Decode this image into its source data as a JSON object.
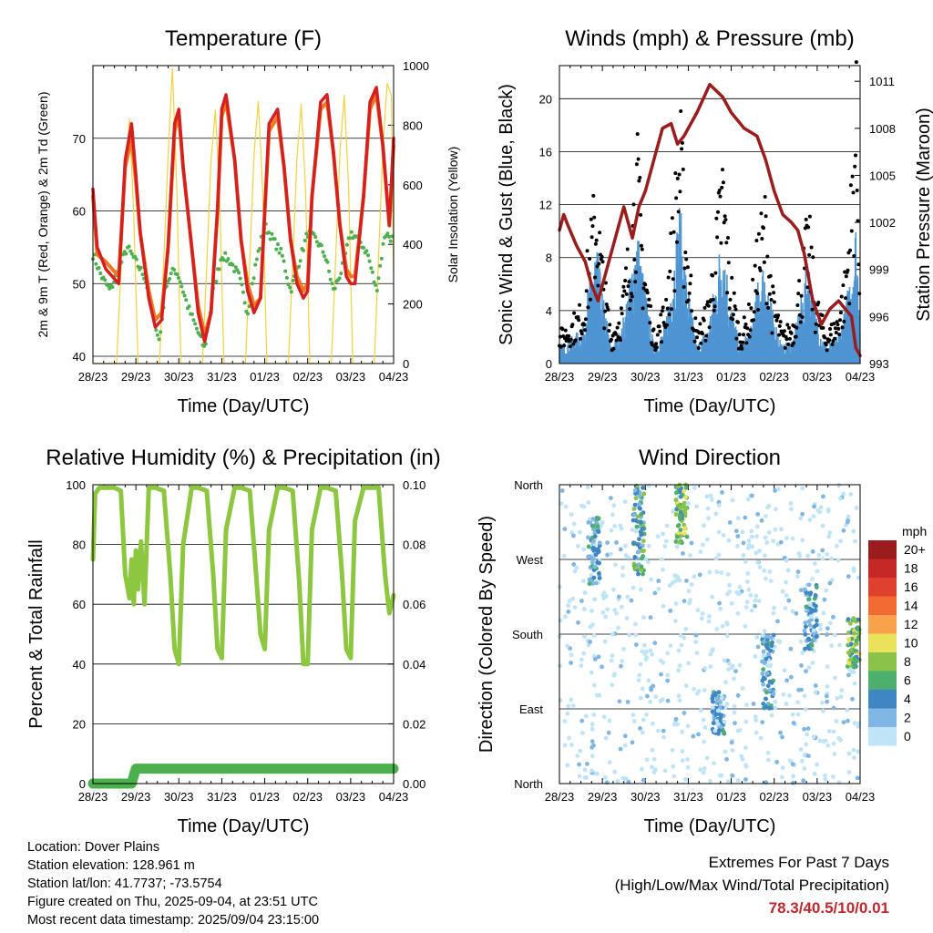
{
  "chart_data": [
    {
      "id": "temperature",
      "type": "line",
      "title": "Temperature (F)",
      "xlabel": "Time (Day/UTC)",
      "ylabel": "2m & 9m T (Red, Orange) & 2m Td (Green)",
      "y2label": "Solar Insolation (Yellow)",
      "x_ticks": [
        "28/23",
        "29/23",
        "30/23",
        "31/23",
        "01/23",
        "02/23",
        "03/23",
        "04/23"
      ],
      "ylim": [
        39,
        80
      ],
      "y_ticks": [
        40,
        50,
        60,
        70
      ],
      "y2lim": [
        0,
        1000
      ],
      "y2_ticks": [
        0,
        200,
        400,
        600,
        800,
        1000
      ],
      "colors": {
        "t2m": "#d42020",
        "t9m": "#f07820",
        "td2m": "#4cb04c",
        "solar": "#f3d23c"
      },
      "series": [
        {
          "name": "2m T",
          "color": "#d42020",
          "x": [
            0,
            0.1,
            0.3,
            0.45,
            0.6,
            0.75,
            0.9,
            1.0,
            1.1,
            1.3,
            1.45,
            1.6,
            1.75,
            1.9,
            2.0,
            2.1,
            2.3,
            2.45,
            2.6,
            2.75,
            2.9,
            3.0,
            3.1,
            3.3,
            3.45,
            3.6,
            3.75,
            3.9,
            4.0,
            4.1,
            4.3,
            4.45,
            4.6,
            4.75,
            4.9,
            5.0,
            5.1,
            5.3,
            5.45,
            5.6,
            5.75,
            5.9,
            6.0,
            6.1,
            6.3,
            6.45,
            6.6,
            6.75,
            6.9,
            7.0
          ],
          "values": [
            63,
            55,
            52,
            51,
            50,
            67,
            72,
            65,
            57,
            48,
            44,
            45,
            55,
            72,
            74,
            66,
            55,
            46,
            42,
            46,
            60,
            74,
            76,
            67,
            56,
            49,
            46,
            48,
            60,
            72,
            74,
            66,
            56,
            50,
            48,
            49,
            62,
            75,
            76,
            68,
            58,
            51,
            50,
            50,
            62,
            75,
            77,
            69,
            58,
            70
          ]
        },
        {
          "name": "9m T",
          "color": "#f07820",
          "x": [
            0,
            0.1,
            0.3,
            0.45,
            0.6,
            0.75,
            0.9,
            1.0,
            1.1,
            1.3,
            1.45,
            1.6,
            1.75,
            1.9,
            2.0,
            2.1,
            2.3,
            2.45,
            2.6,
            2.75,
            2.9,
            3.0,
            3.1,
            3.3,
            3.45,
            3.6,
            3.75,
            3.9,
            4.0,
            4.1,
            4.3,
            4.45,
            4.6,
            4.75,
            4.9,
            5.0,
            5.1,
            5.3,
            5.45,
            5.6,
            5.75,
            5.9,
            6.0,
            6.1,
            6.3,
            6.45,
            6.6,
            6.75,
            6.9,
            7.0
          ],
          "values": [
            62,
            54,
            53,
            52,
            51,
            66,
            70,
            64,
            57,
            49,
            45,
            46,
            55,
            71,
            73,
            66,
            55,
            47,
            43,
            46,
            60,
            73,
            75,
            67,
            56,
            50,
            47,
            48,
            60,
            71,
            73,
            66,
            56,
            51,
            49,
            50,
            62,
            74,
            75,
            68,
            58,
            52,
            51,
            51,
            62,
            74,
            76,
            69,
            58,
            69
          ]
        },
        {
          "name": "2m Td",
          "color": "#4cb04c",
          "x": [
            0,
            0.2,
            0.4,
            0.6,
            0.8,
            1.0,
            1.2,
            1.4,
            1.55,
            1.7,
            1.9,
            2.0,
            2.2,
            2.4,
            2.6,
            2.8,
            3.0,
            3.2,
            3.4,
            3.6,
            3.8,
            4.0,
            4.2,
            4.4,
            4.6,
            4.8,
            5.0,
            5.2,
            5.4,
            5.6,
            5.8,
            6.0,
            6.2,
            6.4,
            6.6,
            6.8,
            7.0
          ],
          "values": [
            54,
            51,
            49,
            52,
            55,
            53,
            51,
            46,
            42,
            50,
            52,
            51,
            47,
            44,
            41,
            49,
            54,
            53,
            51,
            46,
            53,
            58,
            56,
            54,
            49,
            53,
            57,
            56,
            54,
            49,
            52,
            57,
            56,
            54,
            49,
            57,
            56
          ]
        },
        {
          "name": "Solar Insolation",
          "color": "#f3d23c",
          "axis": "y2",
          "x": [
            0,
            0.55,
            0.65,
            0.75,
            0.85,
            0.95,
            1.05,
            1.55,
            1.65,
            1.75,
            1.85,
            1.95,
            2.05,
            2.55,
            2.65,
            2.75,
            2.85,
            2.95,
            3.05,
            3.55,
            3.65,
            3.75,
            3.85,
            3.95,
            4.05,
            4.55,
            4.65,
            4.75,
            4.85,
            4.95,
            5.05,
            5.55,
            5.65,
            5.75,
            5.85,
            5.95,
            6.05,
            6.55,
            6.65,
            6.75,
            6.85,
            6.95,
            7.0
          ],
          "values": [
            0,
            0,
            300,
            650,
            820,
            500,
            0,
            0,
            350,
            700,
            990,
            600,
            0,
            0,
            330,
            680,
            850,
            560,
            0,
            0,
            340,
            700,
            880,
            590,
            0,
            0,
            330,
            690,
            870,
            580,
            0,
            0,
            350,
            710,
            900,
            600,
            0,
            0,
            360,
            720,
            940,
            900,
            300
          ]
        }
      ]
    },
    {
      "id": "winds",
      "type": "scatter",
      "title": "Winds (mph) & Pressure (mb)",
      "xlabel": "Time (Day/UTC)",
      "ylabel": "Sonic Wind & Gust (Blue, Black)",
      "y2label": "Station Pressure (Maroon)",
      "x_ticks": [
        "28/23",
        "29/23",
        "30/23",
        "31/23",
        "01/23",
        "02/23",
        "03/23",
        "04/23"
      ],
      "ylim": [
        0,
        22.5
      ],
      "y_ticks": [
        0,
        4,
        8,
        12,
        16,
        20
      ],
      "y2lim": [
        993,
        1012
      ],
      "y2_ticks": [
        993,
        996,
        999,
        1002,
        1005,
        1008,
        1011
      ],
      "colors": {
        "wind": "#4f95d2",
        "gust": "#000000",
        "pressure": "#9b1c1c"
      },
      "series": [
        {
          "name": "Station Pressure",
          "color": "#9b1c1c",
          "axis": "y2",
          "x": [
            0,
            0.1,
            0.2,
            0.4,
            0.6,
            0.75,
            0.9,
            1.1,
            1.3,
            1.5,
            1.7,
            1.85,
            2.0,
            2.2,
            2.4,
            2.6,
            2.75,
            2.9,
            3.0,
            3.2,
            3.5,
            3.8,
            4.0,
            4.3,
            4.6,
            4.8,
            5.0,
            5.2,
            5.4,
            5.55,
            5.7,
            5.9,
            6.1,
            6.3,
            6.5,
            6.65,
            6.8,
            6.9,
            7.0
          ],
          "values": [
            1001.5,
            1002.5,
            1001.8,
            1000.5,
            999.5,
            998,
            997,
            999,
            1001,
            1003,
            1001,
            1003,
            1004,
            1006,
            1008,
            1008.3,
            1007,
            1007.5,
            1008,
            1009,
            1010.8,
            1010,
            1009,
            1008,
            1007.5,
            1006,
            1004,
            1002.5,
            1002,
            1001.5,
            1000,
            997,
            995.5,
            996.5,
            997,
            996.5,
            996,
            994,
            993.5
          ]
        },
        {
          "name": "Sonic Wind",
          "color": "#4f95d2",
          "x": [
            0,
            0.3,
            0.55,
            0.65,
            0.85,
            1.0,
            1.2,
            1.45,
            1.65,
            1.8,
            1.95,
            2.2,
            2.45,
            2.65,
            2.8,
            2.95,
            3.2,
            3.45,
            3.65,
            3.8,
            3.95,
            4.2,
            4.45,
            4.65,
            4.8,
            4.95,
            5.2,
            5.45,
            5.65,
            5.8,
            5.95,
            6.2,
            6.45,
            6.65,
            6.8,
            6.9,
            7.0
          ],
          "values": [
            1,
            1.5,
            2,
            4,
            7,
            4,
            1,
            2,
            5,
            8,
            5,
            1,
            2,
            6,
            9,
            5,
            1,
            2,
            5,
            8,
            4,
            1,
            2,
            5,
            6,
            3,
            1,
            1.5,
            4,
            6,
            3,
            1,
            1.5,
            3,
            6,
            8,
            4
          ]
        },
        {
          "name": "Gust",
          "color": "#000000",
          "x": [
            0,
            0.3,
            0.55,
            0.65,
            0.85,
            1.0,
            1.2,
            1.45,
            1.65,
            1.8,
            1.95,
            2.2,
            2.45,
            2.65,
            2.8,
            2.95,
            3.2,
            3.45,
            3.65,
            3.8,
            3.95,
            4.2,
            4.45,
            4.65,
            4.8,
            4.95,
            5.2,
            5.45,
            5.65,
            5.8,
            5.95,
            6.2,
            6.45,
            6.65,
            6.8,
            6.9,
            7.0
          ],
          "values": [
            2,
            3,
            4,
            7,
            12,
            7,
            2,
            4,
            9,
            15,
            8,
            2,
            4,
            10,
            17,
            9,
            2,
            4,
            9,
            14,
            7,
            2,
            4,
            9,
            11,
            5,
            2,
            3,
            7,
            10,
            5,
            2,
            3,
            6,
            12,
            20,
            8
          ]
        }
      ]
    },
    {
      "id": "humidity",
      "type": "line",
      "title": "Relative Humidity (%) & Precipitation (in)",
      "xlabel": "Time (Day/UTC)",
      "ylabel": "Percent & Total Rainfall",
      "x_ticks": [
        "28/23",
        "29/23",
        "30/23",
        "31/23",
        "01/23",
        "02/23",
        "03/23",
        "04/23"
      ],
      "ylim": [
        0,
        100
      ],
      "y_ticks": [
        0,
        20,
        40,
        60,
        80,
        100
      ],
      "y2lim": [
        0,
        0.1
      ],
      "y2_ticks": [
        "0.00",
        "0.02",
        "0.04",
        "0.06",
        "0.08",
        "0.10"
      ],
      "colors": {
        "rh": "#8dc63f",
        "precip": "#4cb04c"
      },
      "series": [
        {
          "name": "Relative Humidity",
          "color": "#8dc63f",
          "x": [
            0,
            0.05,
            0.15,
            0.3,
            0.5,
            0.65,
            0.75,
            0.85,
            0.9,
            0.95,
            1.0,
            1.05,
            1.12,
            1.2,
            1.3,
            1.45,
            1.65,
            1.8,
            1.9,
            2.0,
            2.1,
            2.3,
            2.45,
            2.65,
            2.8,
            2.9,
            3.0,
            3.1,
            3.3,
            3.45,
            3.65,
            3.8,
            3.9,
            4.0,
            4.1,
            4.3,
            4.45,
            4.65,
            4.8,
            4.9,
            5.0,
            5.1,
            5.3,
            5.45,
            5.65,
            5.8,
            5.9,
            6.0,
            6.1,
            6.3,
            6.45,
            6.65,
            6.8,
            6.9,
            7.0
          ],
          "values": [
            75,
            97,
            99,
            99,
            99,
            98,
            70,
            62,
            75,
            60,
            78,
            65,
            81,
            60,
            99,
            99,
            98,
            70,
            45,
            40,
            80,
            99,
            99,
            98,
            70,
            45,
            42,
            85,
            99,
            99,
            98,
            70,
            50,
            45,
            85,
            99,
            99,
            98,
            68,
            40,
            40,
            85,
            99,
            99,
            98,
            70,
            45,
            42,
            88,
            99,
            99,
            99,
            70,
            57,
            63
          ]
        },
        {
          "name": "Total Precipitation",
          "color": "#4cb04c",
          "axis": "y2",
          "x": [
            0,
            0.9,
            1.0,
            7.0
          ],
          "values": [
            0,
            0,
            0.005,
            0.005
          ]
        }
      ]
    },
    {
      "id": "winddir",
      "type": "scatter",
      "title": "Wind Direction",
      "xlabel": "Time (Day/UTC)",
      "ylabel": "Direction (Colored By Speed)",
      "x_ticks": [
        "28/23",
        "29/23",
        "30/23",
        "31/23",
        "01/23",
        "02/23",
        "03/23",
        "04/23"
      ],
      "y_ticks": [
        "North",
        "East",
        "South",
        "West",
        "North"
      ],
      "ylim": [
        0,
        360
      ],
      "legend": {
        "title": "mph",
        "labels": [
          "20+",
          "18",
          "16",
          "14",
          "12",
          "10",
          "8",
          "6",
          "4",
          "2",
          "0"
        ],
        "colors": [
          "#9b1c1c",
          "#c62828",
          "#e0402e",
          "#f26b32",
          "#f8a24c",
          "#e9e25a",
          "#8bc34a",
          "#4caf6e",
          "#3f86c4",
          "#7fb6e3",
          "#bfe4f7"
        ]
      },
      "clusters": [
        {
          "x": 0.8,
          "dir_range": [
            240,
            320
          ],
          "speed": 4
        },
        {
          "x": 1.85,
          "dir_range": [
            250,
            360
          ],
          "speed": 6
        },
        {
          "x": 2.85,
          "dir_range": [
            290,
            360
          ],
          "speed": 8
        },
        {
          "x": 3.7,
          "dir_range": [
            60,
            110
          ],
          "speed": 4
        },
        {
          "x": 4.85,
          "dir_range": [
            90,
            180
          ],
          "speed": 4
        },
        {
          "x": 5.85,
          "dir_range": [
            160,
            240
          ],
          "speed": 4
        },
        {
          "x": 6.85,
          "dir_range": [
            140,
            200
          ],
          "speed": 8
        }
      ]
    }
  ],
  "footer": {
    "location": "Location: Dover Plains",
    "elevation": "Station elevation: 128.961 m",
    "latlon": "Station lat/lon: 41.7737; -73.5754",
    "created": "Figure created on Thu, 2025-09-04, at 23:51 UTC",
    "recent": "Most recent data timestamp: 2025/09/04 23:15:00",
    "extremes_title": "Extremes For Past 7 Days",
    "extremes_sub": "(High/Low/Max Wind/Total Precipitation)",
    "extremes_values": "78.3/40.5/10/0.01"
  }
}
